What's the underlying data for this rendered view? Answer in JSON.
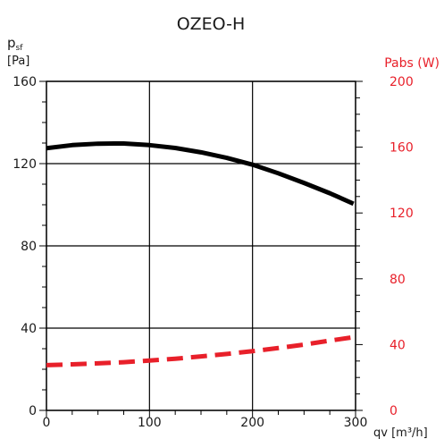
{
  "chart_data": {
    "type": "line",
    "title": "OZEO-H",
    "xlabel": "qv [m³/h]",
    "ylabel_left": {
      "main": "p",
      "sub": "sf",
      "unit": "[Pa]"
    },
    "ylabel_right": "Pabs (W)",
    "xlim": [
      0,
      300
    ],
    "ylim_left": [
      0,
      160
    ],
    "ylim_right": [
      0,
      200
    ],
    "x_ticks": [
      "0",
      "100",
      "200",
      "300"
    ],
    "y_ticks_left": [
      "0",
      "40",
      "80",
      "120",
      "160"
    ],
    "y_ticks_right": [
      "0",
      "40",
      "80",
      "120",
      "160",
      "200"
    ],
    "grid": true,
    "colors": {
      "pressure": "#000000",
      "power": "#e8202a"
    },
    "series": [
      {
        "axis": "left",
        "style": "solid",
        "x": [
          0,
          25,
          50,
          75,
          100,
          125,
          150,
          175,
          200,
          225,
          250,
          275,
          298
        ],
        "y": [
          127.5,
          129,
          129.7,
          129.8,
          129,
          127.6,
          125.5,
          122.8,
          119.5,
          115.3,
          110.6,
          105.6,
          100.5
        ]
      },
      {
        "axis": "right",
        "style": "dashed",
        "x": [
          0,
          25,
          50,
          75,
          100,
          125,
          150,
          175,
          200,
          225,
          250,
          275,
          298
        ],
        "y": [
          27.5,
          28,
          28.6,
          29.3,
          30.3,
          31.4,
          32.8,
          34.3,
          36,
          37.9,
          40,
          42.4,
          44.5
        ]
      }
    ]
  }
}
